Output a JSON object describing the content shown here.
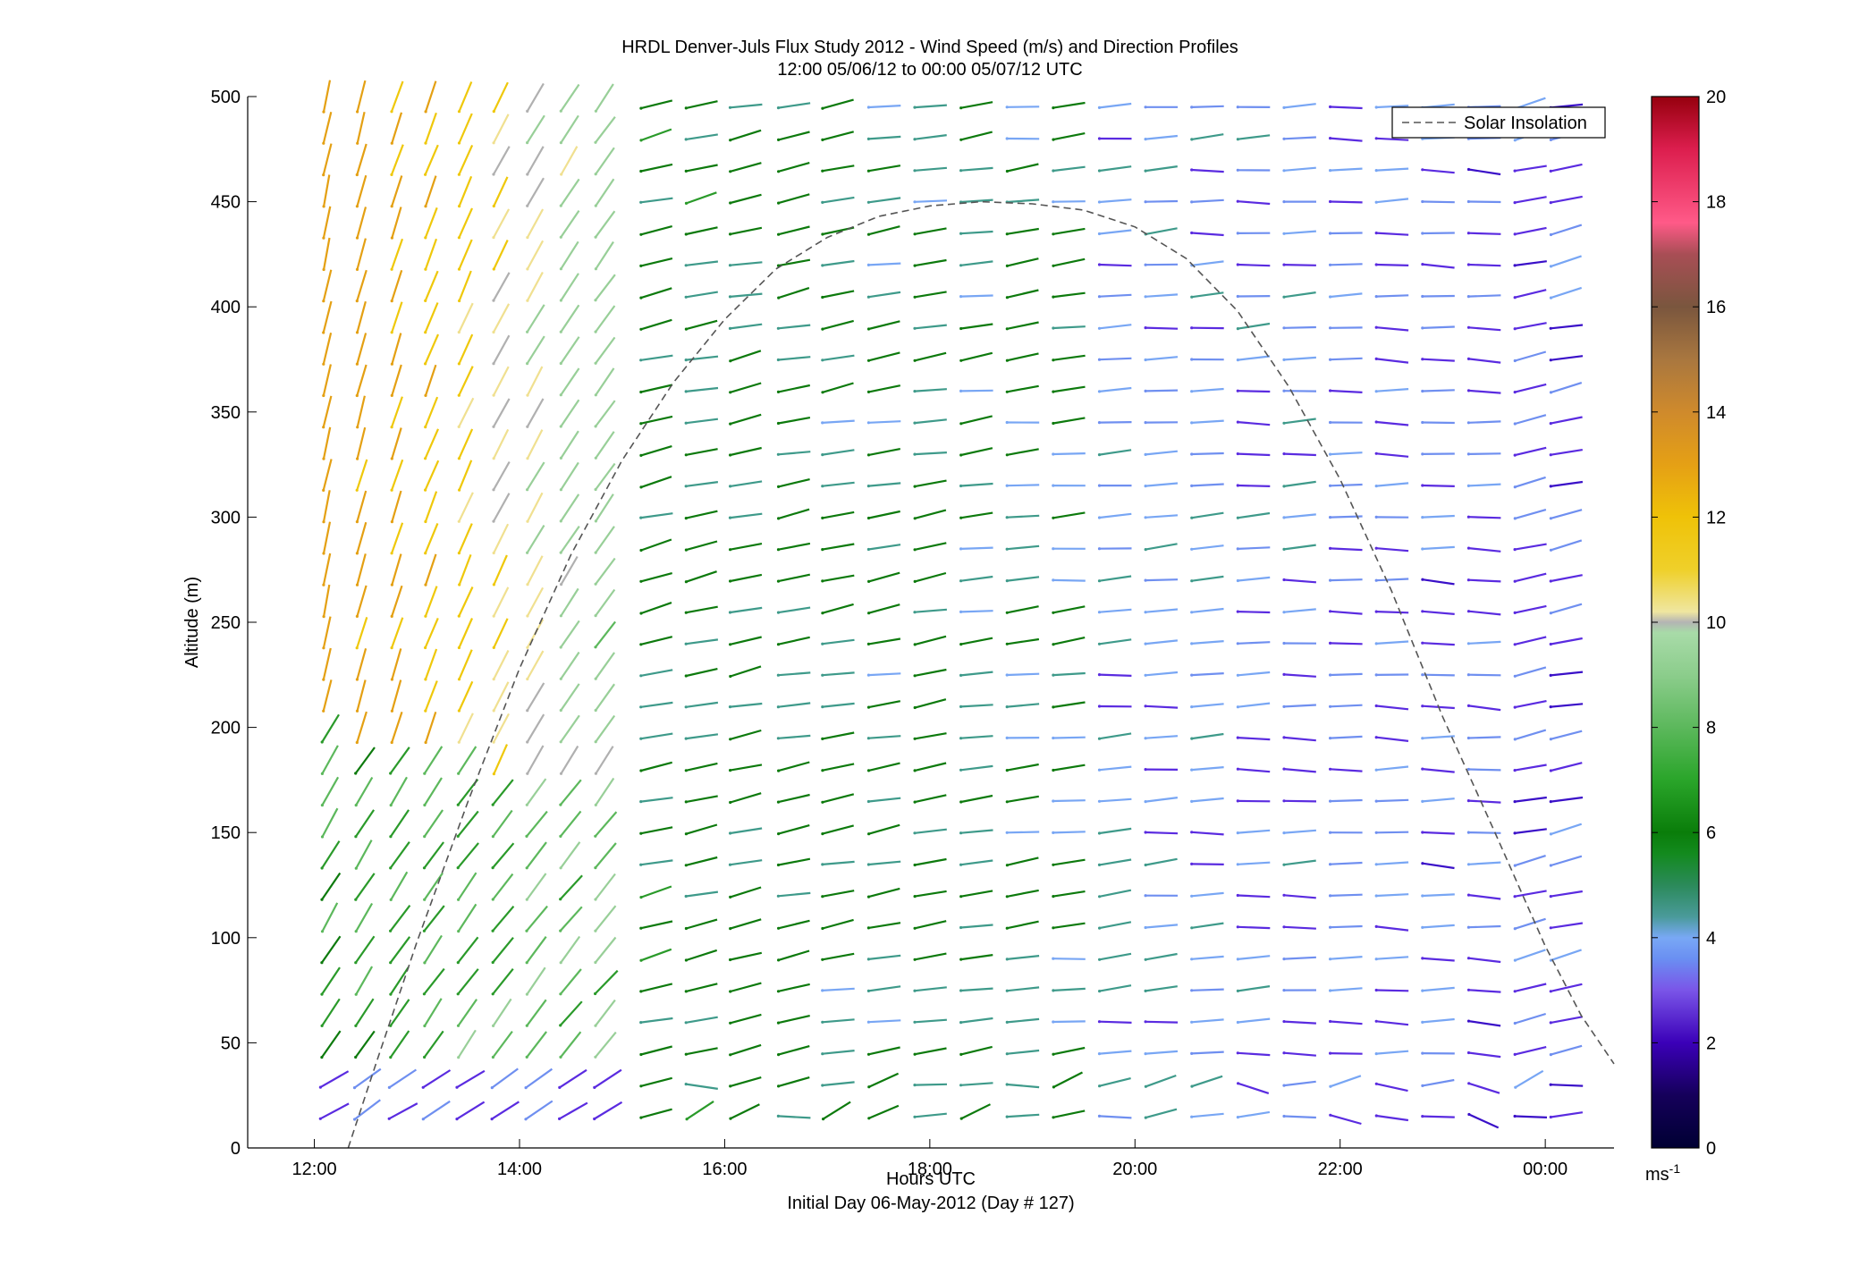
{
  "chart_data": {
    "type": "wind-barb-profile",
    "title": "HRDL Denver-Juls Flux Study 2012 - Wind Speed (m/s) and Direction Profiles",
    "subtitle": "12:00 05/06/12 to 00:00 05/07/12  UTC",
    "xlabel": "Hours UTC",
    "xlabel_note": "Initial Day 06-May-2012 (Day # 127)",
    "ylabel": "Altitude (m)",
    "x_ticks": [
      "12:00",
      "14:00",
      "16:00",
      "18:00",
      "20:00",
      "22:00",
      "00:00"
    ],
    "x_tick_hours": [
      12,
      14,
      16,
      18,
      20,
      22,
      24
    ],
    "xlim": [
      11.35,
      24.67
    ],
    "y_ticks": [
      0,
      50,
      100,
      150,
      200,
      250,
      300,
      350,
      400,
      450,
      500
    ],
    "ylim": [
      0,
      500
    ],
    "legend": {
      "label": "Solar Insolation",
      "placement": "top-right",
      "style": "dashed"
    },
    "colorbar": {
      "range": [
        0,
        20
      ],
      "ticks": [
        0,
        2,
        4,
        6,
        8,
        10,
        12,
        14,
        16,
        18,
        20
      ],
      "unit_label": "ms",
      "unit_exponent": "-1"
    },
    "colors": {
      "axis": "#000000",
      "insolation_line": "#555555"
    },
    "profiles": {
      "times": [
        12.1,
        12.43,
        12.77,
        13.1,
        13.43,
        13.77,
        14.1,
        14.43,
        14.77,
        15.23,
        15.67,
        16.1,
        16.57,
        17.0,
        17.45,
        17.9,
        18.35,
        18.8,
        19.25,
        19.7,
        20.15,
        20.6,
        21.05,
        21.5,
        21.95,
        22.4,
        22.85,
        23.3,
        23.75,
        24.1
      ],
      "altitudes": [
        15,
        30,
        45,
        60,
        75,
        90,
        105,
        120,
        135,
        150,
        165,
        180,
        195,
        210,
        225,
        240,
        255,
        270,
        285,
        300,
        315,
        330,
        345,
        360,
        375,
        390,
        405,
        420,
        435,
        450,
        465,
        480,
        495
      ]
    },
    "solar_insolation": {
      "x": [
        12.33,
        12.6,
        13.0,
        13.5,
        14.0,
        14.5,
        15.0,
        15.5,
        16.0,
        16.5,
        17.0,
        17.5,
        18.0,
        18.5,
        19.0,
        19.5,
        20.0,
        20.5,
        21.0,
        21.5,
        22.0,
        22.5,
        23.0,
        23.5,
        24.0,
        24.35,
        24.67
      ],
      "y": [
        0,
        40,
        98,
        165,
        228,
        282,
        327,
        364,
        394,
        418,
        433,
        443,
        448,
        450,
        449,
        446,
        438,
        423,
        398,
        362,
        318,
        265,
        205,
        151,
        96,
        63,
        40
      ]
    }
  }
}
